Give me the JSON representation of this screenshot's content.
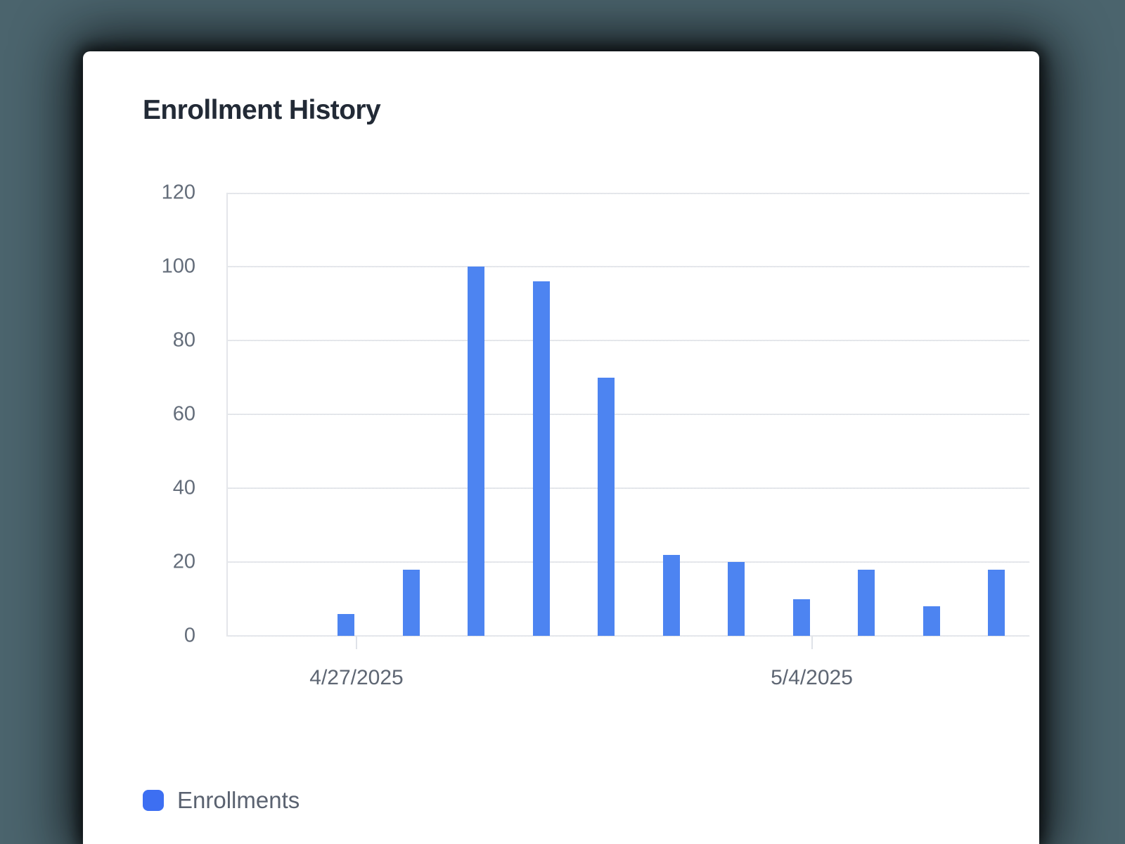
{
  "page": {
    "background_color": "#4b646d",
    "card_background": "#ffffff"
  },
  "chart_data": {
    "type": "bar",
    "title": "Enrollment History",
    "series": [
      {
        "name": "Enrollments",
        "color": "#4d84f1",
        "values": [
          6,
          18,
          100,
          96,
          70,
          22,
          20,
          10,
          18,
          8,
          18
        ]
      }
    ],
    "ylim": [
      0,
      120
    ],
    "y_ticks": [
      0,
      20,
      40,
      60,
      80,
      100,
      120
    ],
    "x_ticks": [
      {
        "label": "4/27/2025",
        "bar_index": 0
      },
      {
        "label": "5/4/2025",
        "bar_index": 7
      }
    ],
    "grid": true,
    "legend": {
      "position": "bottom-left",
      "items": [
        {
          "label": "Enrollments",
          "color": "#3d6ff2"
        }
      ]
    }
  }
}
